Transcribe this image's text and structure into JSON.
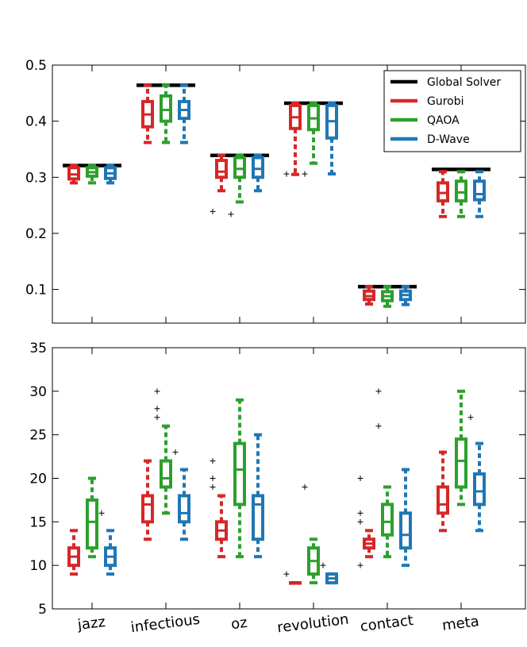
{
  "chart_data": [
    {
      "type": "box",
      "title": "",
      "xlabel": "",
      "ylabel": "",
      "ylim": [
        0.04,
        0.5
      ],
      "yticks": [
        0.1,
        0.2,
        0.3,
        0.4,
        0.5
      ],
      "ytick_labels": [
        "0.1",
        "0.2",
        "0.3",
        "0.4",
        "0.5"
      ],
      "categories": [
        "jazz",
        "infectious",
        "oz",
        "revolution",
        "contact",
        "meta"
      ],
      "legend_position": "top-right",
      "reference_series": {
        "name": "Global Solver",
        "color": "#000000",
        "values": [
          0.321,
          0.464,
          0.339,
          0.432,
          0.105,
          0.314
        ]
      },
      "series": [
        {
          "name": "Gurobi",
          "color": "#d62728",
          "boxes": [
            {
              "whislo": 0.29,
              "q1": 0.297,
              "med": 0.305,
              "q3": 0.317,
              "whishi": 0.321,
              "fliers": []
            },
            {
              "whislo": 0.362,
              "q1": 0.39,
              "med": 0.412,
              "q3": 0.435,
              "whishi": 0.464,
              "fliers": []
            },
            {
              "whislo": 0.276,
              "q1": 0.3,
              "med": 0.31,
              "q3": 0.33,
              "whishi": 0.339,
              "fliers": [
                0.239
              ]
            },
            {
              "whislo": 0.305,
              "q1": 0.387,
              "med": 0.407,
              "q3": 0.428,
              "whishi": 0.432,
              "fliers": [
                0.306
              ]
            },
            {
              "whislo": 0.074,
              "q1": 0.082,
              "med": 0.088,
              "q3": 0.097,
              "whishi": 0.105,
              "fliers": []
            },
            {
              "whislo": 0.23,
              "q1": 0.258,
              "med": 0.272,
              "q3": 0.29,
              "whishi": 0.31,
              "fliers": []
            }
          ]
        },
        {
          "name": "QAOA",
          "color": "#2ca02c",
          "boxes": [
            {
              "whislo": 0.29,
              "q1": 0.302,
              "med": 0.309,
              "q3": 0.317,
              "whishi": 0.321,
              "fliers": []
            },
            {
              "whislo": 0.362,
              "q1": 0.4,
              "med": 0.42,
              "q3": 0.445,
              "whishi": 0.464,
              "fliers": []
            },
            {
              "whislo": 0.256,
              "q1": 0.3,
              "med": 0.315,
              "q3": 0.335,
              "whishi": 0.339,
              "fliers": [
                0.234
              ]
            },
            {
              "whislo": 0.325,
              "q1": 0.385,
              "med": 0.405,
              "q3": 0.428,
              "whishi": 0.432,
              "fliers": [
                0.306
              ]
            },
            {
              "whislo": 0.07,
              "q1": 0.08,
              "med": 0.088,
              "q3": 0.096,
              "whishi": 0.105,
              "fliers": []
            },
            {
              "whislo": 0.23,
              "q1": 0.258,
              "med": 0.273,
              "q3": 0.293,
              "whishi": 0.31,
              "fliers": []
            }
          ]
        },
        {
          "name": "D-Wave",
          "color": "#1f77b4",
          "boxes": [
            {
              "whislo": 0.29,
              "q1": 0.298,
              "med": 0.307,
              "q3": 0.317,
              "whishi": 0.321,
              "fliers": []
            },
            {
              "whislo": 0.362,
              "q1": 0.405,
              "med": 0.42,
              "q3": 0.435,
              "whishi": 0.464,
              "fliers": []
            },
            {
              "whislo": 0.276,
              "q1": 0.3,
              "med": 0.315,
              "q3": 0.335,
              "whishi": 0.339,
              "fliers": []
            },
            {
              "whislo": 0.306,
              "q1": 0.37,
              "med": 0.4,
              "q3": 0.428,
              "whishi": 0.432,
              "fliers": []
            },
            {
              "whislo": 0.073,
              "q1": 0.082,
              "med": 0.09,
              "q3": 0.097,
              "whishi": 0.105,
              "fliers": []
            },
            {
              "whislo": 0.23,
              "q1": 0.26,
              "med": 0.27,
              "q3": 0.293,
              "whishi": 0.31,
              "fliers": []
            }
          ]
        }
      ]
    },
    {
      "type": "box",
      "title": "",
      "xlabel": "",
      "ylabel": "",
      "ylim": [
        5,
        35
      ],
      "yticks": [
        5,
        10,
        15,
        20,
        25,
        30,
        35
      ],
      "ytick_labels": [
        "5",
        "10",
        "15",
        "20",
        "25",
        "30",
        "35"
      ],
      "categories": [
        "jazz",
        "infectious",
        "oz",
        "revolution",
        "contact",
        "meta"
      ],
      "series": [
        {
          "name": "Gurobi",
          "color": "#d62728",
          "boxes": [
            {
              "whislo": 9,
              "q1": 10,
              "med": 11,
              "q3": 12,
              "whishi": 14,
              "fliers": []
            },
            {
              "whislo": 13,
              "q1": 15,
              "med": 17,
              "q3": 18,
              "whishi": 22,
              "fliers": []
            },
            {
              "whislo": 11,
              "q1": 13,
              "med": 14,
              "q3": 15,
              "whishi": 18,
              "fliers": [
                19,
                20,
                22
              ]
            },
            {
              "whislo": 8,
              "q1": 8,
              "med": 8,
              "q3": 8,
              "whishi": 8,
              "fliers": [
                9
              ]
            },
            {
              "whislo": 11,
              "q1": 12,
              "med": 12.5,
              "q3": 13,
              "whishi": 14,
              "fliers": [
                10,
                15,
                16,
                20
              ]
            },
            {
              "whislo": 14,
              "q1": 16,
              "med": 17,
              "q3": 19,
              "whishi": 23,
              "fliers": []
            }
          ]
        },
        {
          "name": "QAOA",
          "color": "#2ca02c",
          "boxes": [
            {
              "whislo": 11,
              "q1": 12,
              "med": 15,
              "q3": 17.5,
              "whishi": 20,
              "fliers": []
            },
            {
              "whislo": 16,
              "q1": 19,
              "med": 20,
              "q3": 22,
              "whishi": 26,
              "fliers": [
                27,
                28,
                30
              ]
            },
            {
              "whislo": 11,
              "q1": 17,
              "med": 21,
              "q3": 24,
              "whishi": 29,
              "fliers": []
            },
            {
              "whislo": 8,
              "q1": 9,
              "med": 10.5,
              "q3": 12,
              "whishi": 13,
              "fliers": [
                19
              ]
            },
            {
              "whislo": 11,
              "q1": 13.5,
              "med": 15,
              "q3": 17,
              "whishi": 19,
              "fliers": [
                26,
                30
              ]
            },
            {
              "whislo": 17,
              "q1": 19,
              "med": 22,
              "q3": 24.5,
              "whishi": 30,
              "fliers": []
            }
          ]
        },
        {
          "name": "D-Wave",
          "color": "#1f77b4",
          "boxes": [
            {
              "whislo": 9,
              "q1": 10,
              "med": 11,
              "q3": 12,
              "whishi": 14,
              "fliers": [
                16
              ]
            },
            {
              "whislo": 13,
              "q1": 15,
              "med": 16,
              "q3": 18,
              "whishi": 21,
              "fliers": [
                23
              ]
            },
            {
              "whislo": 11,
              "q1": 13,
              "med": 17,
              "q3": 18,
              "whishi": 25,
              "fliers": []
            },
            {
              "whislo": 8,
              "q1": 8,
              "med": 8.5,
              "q3": 9,
              "whishi": 9,
              "fliers": [
                10
              ]
            },
            {
              "whislo": 10,
              "q1": 12,
              "med": 13.5,
              "q3": 16,
              "whishi": 21,
              "fliers": []
            },
            {
              "whislo": 14,
              "q1": 17,
              "med": 18.5,
              "q3": 20.5,
              "whishi": 24,
              "fliers": [
                27
              ]
            }
          ]
        }
      ]
    }
  ]
}
